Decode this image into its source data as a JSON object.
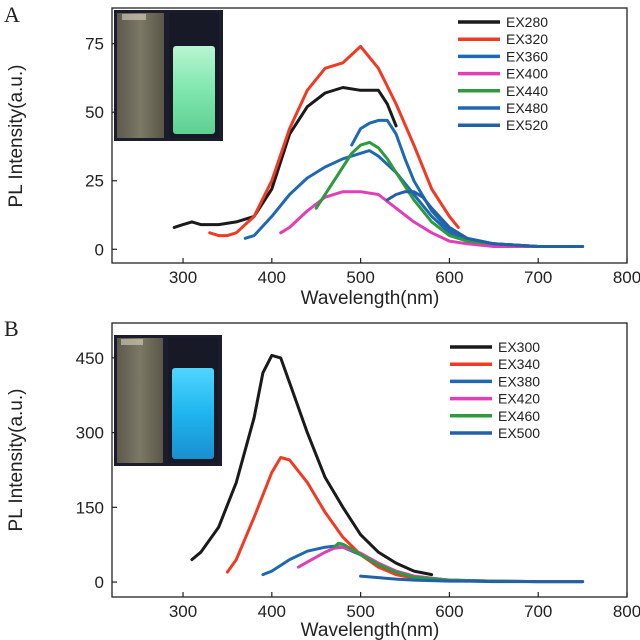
{
  "chart_data": [
    {
      "type": "line",
      "panel_label": "A",
      "xlabel": "Wavelength(nm)",
      "ylabel": "PL Intensity(a.u.)",
      "xlim": [
        220,
        800
      ],
      "ylim": [
        -5,
        88
      ],
      "xticks": [
        300,
        400,
        500,
        600,
        700,
        800
      ],
      "yticks": [
        0,
        25,
        50,
        75
      ],
      "legend": "top-right",
      "inset": "photo of two cuvettes, right one glowing green",
      "series": [
        {
          "name": "EX280",
          "color": "#1a1a1a",
          "x": [
            290,
            300,
            310,
            320,
            340,
            360,
            380,
            400,
            420,
            440,
            460,
            480,
            500,
            520,
            530,
            540
          ],
          "y": [
            8,
            9,
            10,
            9,
            9,
            10,
            12,
            22,
            42,
            52,
            57,
            59,
            58,
            58,
            53,
            45
          ]
        },
        {
          "name": "EX320",
          "color": "#ef3b24",
          "x": [
            330,
            340,
            350,
            360,
            380,
            400,
            420,
            440,
            460,
            480,
            490,
            500,
            520,
            540,
            560,
            580,
            600,
            610
          ],
          "y": [
            6,
            5,
            5,
            6,
            12,
            25,
            44,
            58,
            66,
            68,
            71,
            74,
            66,
            53,
            38,
            22,
            12,
            8
          ]
        },
        {
          "name": "EX360",
          "color": "#1f69b2",
          "x": [
            370,
            380,
            400,
            420,
            440,
            460,
            480,
            500,
            510,
            520,
            540,
            560,
            580,
            600,
            620,
            650,
            700,
            750
          ],
          "y": [
            4,
            5,
            12,
            20,
            26,
            30,
            33,
            35,
            36,
            34,
            28,
            20,
            12,
            6,
            3,
            2,
            1,
            1
          ]
        },
        {
          "name": "EX400",
          "color": "#e23fb7",
          "x": [
            410,
            420,
            440,
            460,
            480,
            500,
            520,
            540,
            560,
            580,
            600,
            620,
            650,
            700,
            750
          ],
          "y": [
            6,
            8,
            14,
            19,
            21,
            21,
            20,
            15,
            10,
            6,
            3,
            2,
            1,
            1,
            1
          ]
        },
        {
          "name": "EX440",
          "color": "#2e9a3e",
          "x": [
            450,
            460,
            480,
            490,
            500,
            510,
            520,
            530,
            540,
            560,
            580,
            600,
            620,
            650,
            700,
            750
          ],
          "y": [
            15,
            20,
            30,
            35,
            38,
            39,
            37,
            33,
            28,
            18,
            10,
            5,
            3,
            2,
            1,
            1
          ]
        },
        {
          "name": "EX480",
          "color": "#1f69b2",
          "x": [
            490,
            500,
            510,
            520,
            530,
            540,
            550,
            560,
            580,
            600,
            620,
            650,
            700,
            750
          ],
          "y": [
            38,
            44,
            46,
            47,
            47,
            42,
            33,
            25,
            14,
            7,
            4,
            2,
            1,
            1
          ]
        },
        {
          "name": "EX520",
          "color": "#2260a8",
          "x": [
            530,
            540,
            550,
            560,
            570,
            580,
            600,
            620,
            650,
            700,
            750
          ],
          "y": [
            18,
            20,
            21,
            21,
            19,
            15,
            8,
            4,
            2,
            1,
            1
          ]
        }
      ]
    },
    {
      "type": "line",
      "panel_label": "B",
      "xlabel": "Wavelength(nm)",
      "ylabel": "PL Intensity(a.u.)",
      "xlim": [
        220,
        800
      ],
      "ylim": [
        -30,
        520
      ],
      "xticks": [
        300,
        400,
        500,
        600,
        700,
        800
      ],
      "yticks": [
        0,
        150,
        300,
        450
      ],
      "legend": "top-right",
      "inset": "photo of two cuvettes, right one glowing blue",
      "series": [
        {
          "name": "EX300",
          "color": "#1a1a1a",
          "x": [
            310,
            320,
            340,
            360,
            380,
            390,
            400,
            410,
            420,
            440,
            460,
            480,
            500,
            520,
            540,
            560,
            580
          ],
          "y": [
            45,
            60,
            110,
            200,
            330,
            420,
            455,
            450,
            400,
            300,
            210,
            150,
            95,
            60,
            38,
            22,
            15
          ]
        },
        {
          "name": "EX340",
          "color": "#ef3b24",
          "x": [
            350,
            360,
            380,
            400,
            410,
            420,
            440,
            460,
            480,
            500,
            520,
            540,
            560,
            580,
            600,
            620
          ],
          "y": [
            20,
            45,
            130,
            220,
            250,
            245,
            200,
            140,
            90,
            55,
            30,
            15,
            8,
            5,
            3,
            2
          ]
        },
        {
          "name": "EX380",
          "color": "#1f69b2",
          "x": [
            390,
            400,
            420,
            440,
            460,
            470,
            480,
            500,
            520,
            540,
            560,
            600,
            650,
            700,
            750
          ],
          "y": [
            15,
            22,
            45,
            62,
            70,
            72,
            70,
            55,
            35,
            20,
            10,
            4,
            2,
            1,
            1
          ]
        },
        {
          "name": "EX420",
          "color": "#e23fb7",
          "x": [
            430,
            440,
            460,
            470,
            480,
            500,
            520,
            540,
            560,
            600,
            650,
            700,
            750
          ],
          "y": [
            30,
            40,
            60,
            68,
            70,
            58,
            38,
            22,
            12,
            4,
            2,
            1,
            1
          ]
        },
        {
          "name": "EX460",
          "color": "#2e9a3e",
          "x": [
            470,
            475,
            480,
            490,
            500,
            520,
            540,
            560,
            600,
            650,
            700,
            750
          ],
          "y": [
            70,
            78,
            76,
            66,
            55,
            35,
            20,
            10,
            4,
            2,
            1,
            1
          ]
        },
        {
          "name": "EX500",
          "color": "#2260a8",
          "x": [
            500,
            520,
            540,
            560,
            580,
            600,
            620,
            650,
            700,
            750
          ],
          "y": [
            12,
            9,
            6,
            4,
            3,
            2,
            2,
            1,
            1,
            1
          ]
        }
      ]
    }
  ]
}
